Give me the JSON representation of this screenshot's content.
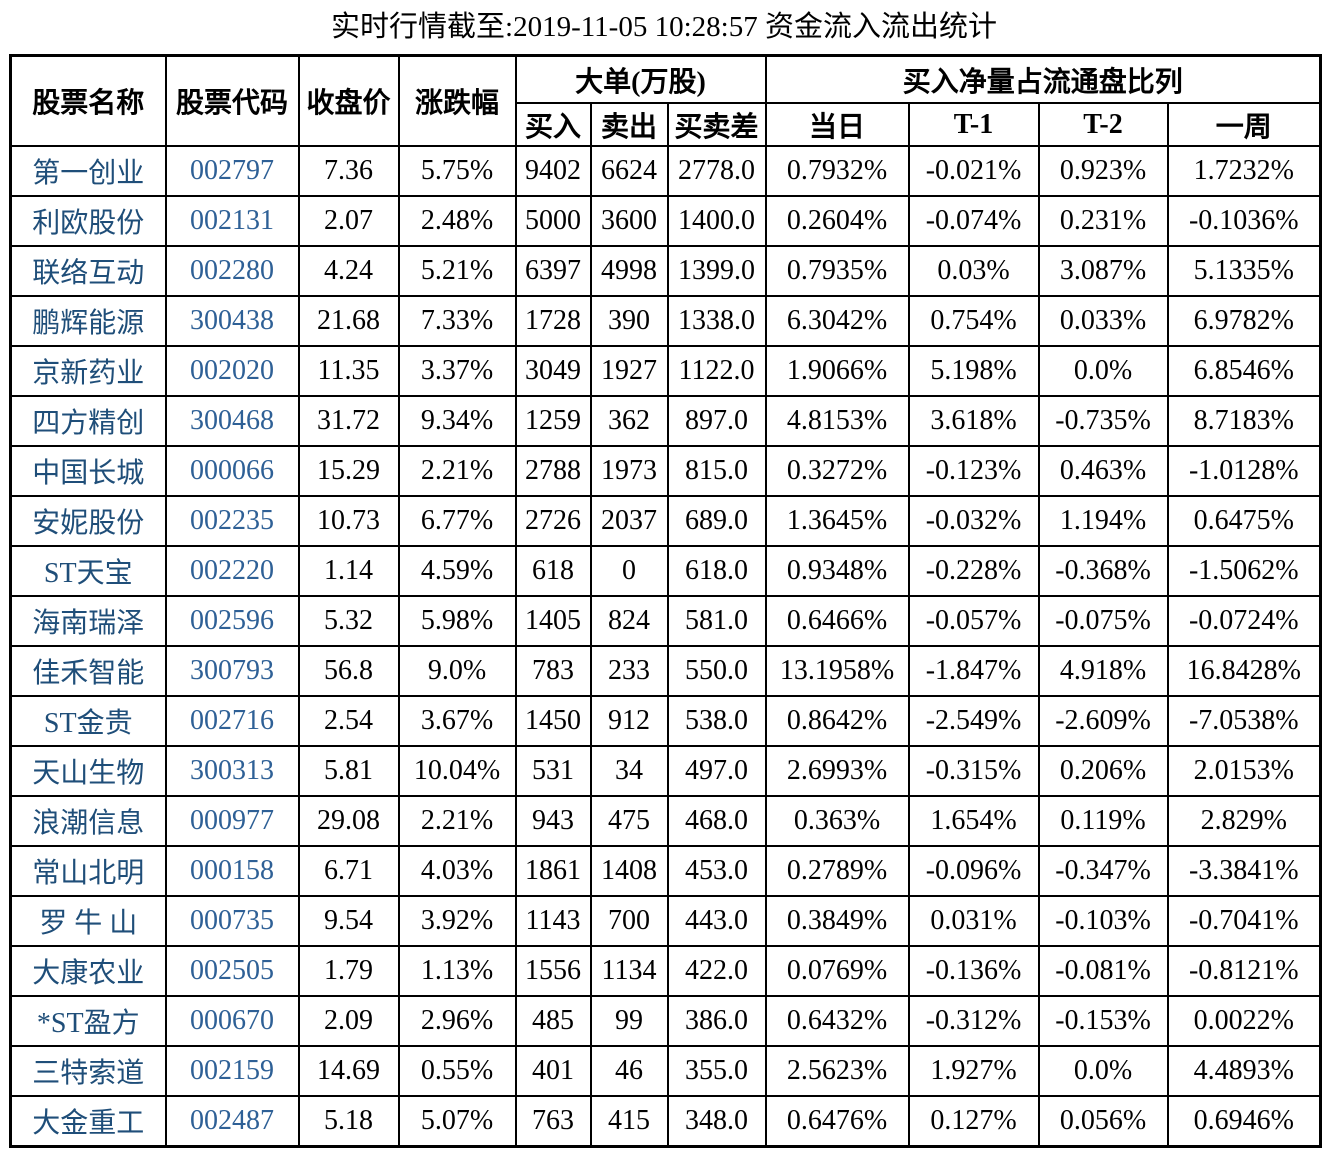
{
  "title": "实时行情截至:2019-11-05 10:28:57 资金流入流出统计",
  "colors": {
    "stock_name_text": "#1f4e79",
    "stock_code_text": "#2e6096",
    "table_border": "#000000",
    "background": "#ffffff"
  },
  "table": {
    "headers": {
      "stock_name": "股票名称",
      "stock_code": "股票代码",
      "close_price": "收盘价",
      "change_pct": "涨跌幅",
      "large_order_group": "大单(万股)",
      "buy": "买入",
      "sell": "卖出",
      "buy_sell_diff": "买卖差",
      "net_buy_ratio_group": "买入净量占流通盘比列",
      "today": "当日",
      "t1": "T-1",
      "t2": "T-2",
      "week": "一周"
    },
    "rows": [
      {
        "name": "第一创业",
        "code": "002797",
        "close": "7.36",
        "change": "5.75%",
        "buy": "9402",
        "sell": "6624",
        "diff": "2778.0",
        "today": "0.7932%",
        "t1": "-0.021%",
        "t2": "0.923%",
        "week": "1.7232%"
      },
      {
        "name": "利欧股份",
        "code": "002131",
        "close": "2.07",
        "change": "2.48%",
        "buy": "5000",
        "sell": "3600",
        "diff": "1400.0",
        "today": "0.2604%",
        "t1": "-0.074%",
        "t2": "0.231%",
        "week": "-0.1036%"
      },
      {
        "name": "联络互动",
        "code": "002280",
        "close": "4.24",
        "change": "5.21%",
        "buy": "6397",
        "sell": "4998",
        "diff": "1399.0",
        "today": "0.7935%",
        "t1": "0.03%",
        "t2": "3.087%",
        "week": "5.1335%"
      },
      {
        "name": "鹏辉能源",
        "code": "300438",
        "close": "21.68",
        "change": "7.33%",
        "buy": "1728",
        "sell": "390",
        "diff": "1338.0",
        "today": "6.3042%",
        "t1": "0.754%",
        "t2": "0.033%",
        "week": "6.9782%"
      },
      {
        "name": "京新药业",
        "code": "002020",
        "close": "11.35",
        "change": "3.37%",
        "buy": "3049",
        "sell": "1927",
        "diff": "1122.0",
        "today": "1.9066%",
        "t1": "5.198%",
        "t2": "0.0%",
        "week": "6.8546%"
      },
      {
        "name": "四方精创",
        "code": "300468",
        "close": "31.72",
        "change": "9.34%",
        "buy": "1259",
        "sell": "362",
        "diff": "897.0",
        "today": "4.8153%",
        "t1": "3.618%",
        "t2": "-0.735%",
        "week": "8.7183%"
      },
      {
        "name": "中国长城",
        "code": "000066",
        "close": "15.29",
        "change": "2.21%",
        "buy": "2788",
        "sell": "1973",
        "diff": "815.0",
        "today": "0.3272%",
        "t1": "-0.123%",
        "t2": "0.463%",
        "week": "-1.0128%"
      },
      {
        "name": "安妮股份",
        "code": "002235",
        "close": "10.73",
        "change": "6.77%",
        "buy": "2726",
        "sell": "2037",
        "diff": "689.0",
        "today": "1.3645%",
        "t1": "-0.032%",
        "t2": "1.194%",
        "week": "0.6475%"
      },
      {
        "name": "ST天宝",
        "code": "002220",
        "close": "1.14",
        "change": "4.59%",
        "buy": "618",
        "sell": "0",
        "diff": "618.0",
        "today": "0.9348%",
        "t1": "-0.228%",
        "t2": "-0.368%",
        "week": "-1.5062%"
      },
      {
        "name": "海南瑞泽",
        "code": "002596",
        "close": "5.32",
        "change": "5.98%",
        "buy": "1405",
        "sell": "824",
        "diff": "581.0",
        "today": "0.6466%",
        "t1": "-0.057%",
        "t2": "-0.075%",
        "week": "-0.0724%"
      },
      {
        "name": "佳禾智能",
        "code": "300793",
        "close": "56.8",
        "change": "9.0%",
        "buy": "783",
        "sell": "233",
        "diff": "550.0",
        "today": "13.1958%",
        "t1": "-1.847%",
        "t2": "4.918%",
        "week": "16.8428%"
      },
      {
        "name": "ST金贵",
        "code": "002716",
        "close": "2.54",
        "change": "3.67%",
        "buy": "1450",
        "sell": "912",
        "diff": "538.0",
        "today": "0.8642%",
        "t1": "-2.549%",
        "t2": "-2.609%",
        "week": "-7.0538%"
      },
      {
        "name": "天山生物",
        "code": "300313",
        "close": "5.81",
        "change": "10.04%",
        "buy": "531",
        "sell": "34",
        "diff": "497.0",
        "today": "2.6993%",
        "t1": "-0.315%",
        "t2": "0.206%",
        "week": "2.0153%"
      },
      {
        "name": "浪潮信息",
        "code": "000977",
        "close": "29.08",
        "change": "2.21%",
        "buy": "943",
        "sell": "475",
        "diff": "468.0",
        "today": "0.363%",
        "t1": "1.654%",
        "t2": "0.119%",
        "week": "2.829%"
      },
      {
        "name": "常山北明",
        "code": "000158",
        "close": "6.71",
        "change": "4.03%",
        "buy": "1861",
        "sell": "1408",
        "diff": "453.0",
        "today": "0.2789%",
        "t1": "-0.096%",
        "t2": "-0.347%",
        "week": "-3.3841%"
      },
      {
        "name": "罗 牛 山",
        "code": "000735",
        "close": "9.54",
        "change": "3.92%",
        "buy": "1143",
        "sell": "700",
        "diff": "443.0",
        "today": "0.3849%",
        "t1": "0.031%",
        "t2": "-0.103%",
        "week": "-0.7041%"
      },
      {
        "name": "大康农业",
        "code": "002505",
        "close": "1.79",
        "change": "1.13%",
        "buy": "1556",
        "sell": "1134",
        "diff": "422.0",
        "today": "0.0769%",
        "t1": "-0.136%",
        "t2": "-0.081%",
        "week": "-0.8121%"
      },
      {
        "name": "*ST盈方",
        "code": "000670",
        "close": "2.09",
        "change": "2.96%",
        "buy": "485",
        "sell": "99",
        "diff": "386.0",
        "today": "0.6432%",
        "t1": "-0.312%",
        "t2": "-0.153%",
        "week": "0.0022%"
      },
      {
        "name": "三特索道",
        "code": "002159",
        "close": "14.69",
        "change": "0.55%",
        "buy": "401",
        "sell": "46",
        "diff": "355.0",
        "today": "2.5623%",
        "t1": "1.927%",
        "t2": "0.0%",
        "week": "4.4893%"
      },
      {
        "name": "大金重工",
        "code": "002487",
        "close": "5.18",
        "change": "5.07%",
        "buy": "763",
        "sell": "415",
        "diff": "348.0",
        "today": "0.6476%",
        "t1": "0.127%",
        "t2": "0.056%",
        "week": "0.6946%"
      }
    ]
  }
}
